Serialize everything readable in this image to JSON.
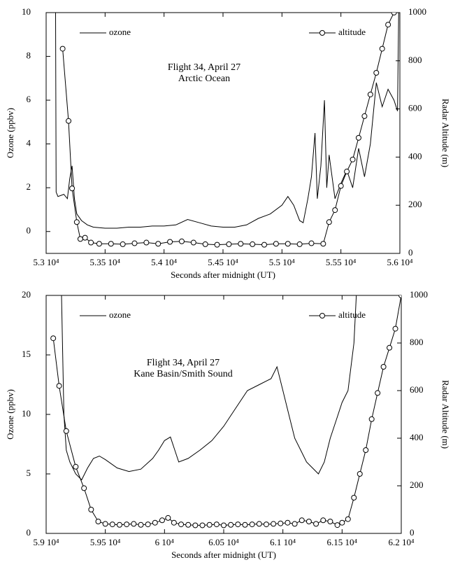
{
  "chart_data": [
    {
      "type": "line",
      "annotations": [
        "Flight 34,  April 27",
        "Arctic Ocean"
      ],
      "xlabel": "Seconds after midnight (UT)",
      "ylabel": "Ozone (ppbv)",
      "y2label": "Radar Altitude (m)",
      "xlim": [
        53000,
        56000
      ],
      "xticks": [
        {
          "value": 53000,
          "label": "5.3 10⁴"
        },
        {
          "value": 53500,
          "label": "5.35 10⁴"
        },
        {
          "value": 54000,
          "label": "5.4 10⁴"
        },
        {
          "value": 54500,
          "label": "5.45 10⁴"
        },
        {
          "value": 55000,
          "label": "5.5 10⁴"
        },
        {
          "value": 55500,
          "label": "5.55 10⁴"
        },
        {
          "value": 56000,
          "label": "5.6 10⁴"
        }
      ],
      "ylim": [
        -1,
        10
      ],
      "yticks": [
        0,
        2,
        4,
        6,
        8,
        10
      ],
      "y2lim": [
        0,
        1000
      ],
      "y2ticks": [
        0,
        200,
        400,
        600,
        800,
        1000
      ],
      "series": [
        {
          "name": "ozone",
          "color": "#000000",
          "x": [
            53080,
            53085,
            53100,
            53150,
            53180,
            53200,
            53220,
            53240,
            53260,
            53300,
            53350,
            53400,
            53500,
            53600,
            53700,
            53800,
            53900,
            54000,
            54100,
            54200,
            54300,
            54400,
            54500,
            54600,
            54700,
            54800,
            54900,
            55000,
            55050,
            55100,
            55150,
            55180,
            55220,
            55250,
            55280,
            55300,
            55330,
            55360,
            55380,
            55400,
            55450,
            55500,
            55550,
            55600,
            55650,
            55700,
            55750,
            55800,
            55850,
            55900,
            55950,
            55980,
            55990
          ],
          "values": [
            10,
            1.8,
            1.6,
            1.7,
            1.5,
            2.4,
            3.0,
            1.5,
            0.8,
            0.5,
            0.3,
            0.2,
            0.15,
            0.15,
            0.2,
            0.2,
            0.25,
            0.25,
            0.3,
            0.55,
            0.4,
            0.25,
            0.2,
            0.2,
            0.3,
            0.6,
            0.8,
            1.2,
            1.6,
            1.2,
            0.5,
            0.4,
            1.5,
            2.5,
            4.5,
            1.5,
            3,
            6,
            2,
            3.5,
            1.5,
            2.2,
            2.8,
            2.0,
            3.8,
            2.5,
            4.0,
            6.8,
            5.7,
            6.5,
            6.0,
            5.5,
            10
          ]
        },
        {
          "name": "altitude",
          "color": "#000000",
          "axis": "y2",
          "marker": "circle",
          "x": [
            53140,
            53190,
            53220,
            53260,
            53290,
            53330,
            53380,
            53450,
            53550,
            53650,
            53750,
            53850,
            53950,
            54050,
            54150,
            54250,
            54350,
            54450,
            54550,
            54650,
            54750,
            54850,
            54950,
            55050,
            55150,
            55250,
            55350,
            55400,
            55450,
            55500,
            55550,
            55600,
            55650,
            55700,
            55750,
            55800,
            55850,
            55900,
            55950
          ],
          "values": [
            850,
            550,
            270,
            130,
            60,
            65,
            45,
            40,
            40,
            38,
            42,
            45,
            40,
            48,
            50,
            45,
            38,
            36,
            38,
            40,
            38,
            36,
            40,
            40,
            38,
            42,
            40,
            130,
            180,
            280,
            340,
            390,
            480,
            570,
            660,
            750,
            850,
            950,
            1000
          ]
        }
      ]
    },
    {
      "type": "line",
      "annotations": [
        "Flight 34, April 27",
        "Kane Basin/Smith Sound"
      ],
      "xlabel": "Seconds after midnight (UT)",
      "ylabel": "Ozone (ppbv)",
      "y2label": "Radar Altitude (m)",
      "xlim": [
        59000,
        62000
      ],
      "xticks": [
        {
          "value": 59000,
          "label": "5.9 10⁴"
        },
        {
          "value": 59500,
          "label": "5.95 10⁴"
        },
        {
          "value": 60000,
          "label": "6 10⁴"
        },
        {
          "value": 60500,
          "label": "6.05 10⁴"
        },
        {
          "value": 61000,
          "label": "6.1 10⁴"
        },
        {
          "value": 61500,
          "label": "6.15 10⁴"
        },
        {
          "value": 62000,
          "label": "6.2 10⁴"
        }
      ],
      "ylim": [
        0,
        20
      ],
      "yticks": [
        0,
        5,
        10,
        15,
        20
      ],
      "y2lim": [
        0,
        1000
      ],
      "y2ticks": [
        0,
        200,
        400,
        600,
        800,
        1000
      ],
      "series": [
        {
          "name": "ozone",
          "color": "#000000",
          "x": [
            59130,
            59150,
            59170,
            59200,
            59250,
            59300,
            59350,
            59400,
            59450,
            59500,
            59600,
            59700,
            59800,
            59900,
            59950,
            60000,
            60050,
            60080,
            60120,
            60200,
            60300,
            60400,
            60500,
            60600,
            60700,
            60800,
            60900,
            60950,
            61000,
            61050,
            61100,
            61150,
            61200,
            61250,
            61300,
            61350,
            61400,
            61450,
            61500,
            61550,
            61600,
            61620
          ],
          "values": [
            20,
            10,
            7,
            6,
            5,
            4.5,
            5.5,
            6.3,
            6.5,
            6.2,
            5.5,
            5.2,
            5.4,
            6.3,
            7,
            7.8,
            8.1,
            7.2,
            6,
            6.3,
            7,
            7.8,
            9,
            10.5,
            12,
            12.5,
            13,
            14,
            12,
            10,
            8,
            7,
            6,
            5.5,
            5,
            6,
            8,
            9.5,
            11,
            12,
            16,
            20
          ]
        },
        {
          "name": "altitude",
          "color": "#000000",
          "axis": "y2",
          "marker": "circle",
          "x": [
            59060,
            59110,
            59170,
            59250,
            59320,
            59380,
            59440,
            59500,
            59560,
            59620,
            59680,
            59740,
            59800,
            59860,
            59920,
            59980,
            60030,
            60080,
            60140,
            60200,
            60260,
            60320,
            60380,
            60440,
            60500,
            60560,
            60620,
            60680,
            60740,
            60800,
            60860,
            60920,
            60980,
            61040,
            61100,
            61160,
            61220,
            61280,
            61340,
            61400,
            61460,
            61500,
            61550,
            61600,
            61650,
            61700,
            61750,
            61800,
            61850,
            61900,
            61950,
            62000
          ],
          "values": [
            820,
            620,
            430,
            280,
            190,
            100,
            50,
            40,
            38,
            36,
            38,
            40,
            36,
            38,
            45,
            55,
            65,
            45,
            38,
            36,
            34,
            34,
            36,
            38,
            34,
            36,
            38,
            36,
            38,
            40,
            38,
            40,
            42,
            45,
            40,
            55,
            50,
            40,
            55,
            50,
            35,
            45,
            60,
            150,
            250,
            350,
            480,
            590,
            700,
            780,
            860,
            1000
          ]
        }
      ]
    }
  ]
}
